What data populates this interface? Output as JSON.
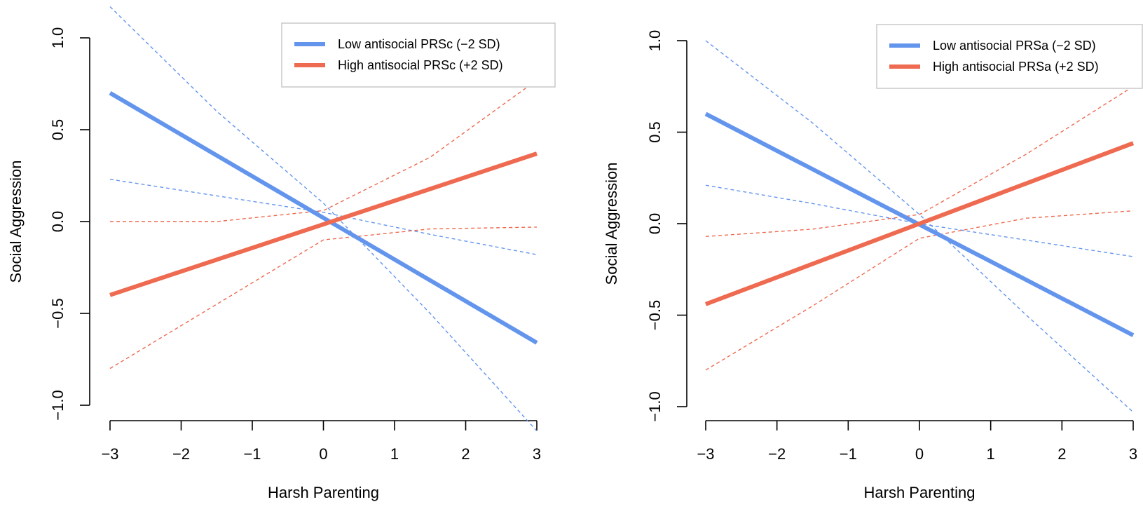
{
  "chart_data": [
    {
      "type": "line",
      "xlabel": "Harsh Parenting",
      "ylabel": "Social Aggression",
      "xlim": [
        -3,
        3
      ],
      "ylim": [
        -1,
        1
      ],
      "x_ticks": [
        "−3",
        "−2",
        "−1",
        "0",
        "1",
        "2",
        "3"
      ],
      "y_ticks": [
        "−1.0",
        "−0.5",
        "0.0",
        "0.5",
        "1.0"
      ],
      "legend_position": "top-right",
      "series": [
        {
          "name": "Low antisocial PRSc (−2 SD)",
          "color": "#6495ed",
          "x": [
            -3,
            3
          ],
          "y": [
            0.7,
            -0.66
          ],
          "ci_upper": {
            "x": [
              -3,
              -1.5,
              0,
              1.5,
              3
            ],
            "y": [
              0.23,
              0.14,
              0.05,
              -0.07,
              -0.18
            ]
          },
          "ci_lower": {
            "x": [
              -3,
              -1.5,
              0,
              1.5,
              3
            ],
            "y": [
              1.17,
              0.6,
              0.1,
              -0.5,
              -1.14
            ]
          }
        },
        {
          "name": "High antisocial PRSc (+2 SD)",
          "color": "#ee6a50",
          "x": [
            -3,
            3
          ],
          "y": [
            -0.4,
            0.37
          ],
          "ci_upper": {
            "x": [
              -3,
              -1.5,
              0,
              1.5,
              3
            ],
            "y": [
              0.0,
              0.0,
              0.06,
              0.35,
              0.77
            ]
          },
          "ci_lower": {
            "x": [
              -3,
              -1.5,
              0,
              1.5,
              3
            ],
            "y": [
              -0.8,
              -0.45,
              -0.1,
              -0.04,
              -0.03
            ]
          }
        }
      ]
    },
    {
      "type": "line",
      "xlabel": "Harsh Parenting",
      "ylabel": "Social Aggression",
      "xlim": [
        -3,
        3
      ],
      "ylim": [
        -1,
        1
      ],
      "x_ticks": [
        "−3",
        "−2",
        "−1",
        "0",
        "1",
        "2",
        "3"
      ],
      "y_ticks": [
        "−1.0",
        "−0.5",
        "0.0",
        "0.5",
        "1.0"
      ],
      "legend_position": "top-right",
      "series": [
        {
          "name": "Low antisocial PRSa (−2 SD)",
          "color": "#6495ed",
          "x": [
            -3,
            3
          ],
          "y": [
            0.6,
            -0.61
          ],
          "ci_upper": {
            "x": [
              -3,
              -1.5,
              0,
              1.5,
              3
            ],
            "y": [
              0.21,
              0.11,
              0.0,
              -0.09,
              -0.18
            ]
          },
          "ci_lower": {
            "x": [
              -3,
              -1.5,
              0,
              1.5,
              3
            ],
            "y": [
              1.0,
              0.55,
              0.05,
              -0.5,
              -1.03
            ]
          }
        },
        {
          "name": "High antisocial PRSa (+2 SD)",
          "color": "#ee6a50",
          "x": [
            -3,
            3
          ],
          "y": [
            -0.44,
            0.44
          ],
          "ci_upper": {
            "x": [
              -3,
              -1.5,
              0,
              1.5,
              3
            ],
            "y": [
              -0.07,
              -0.03,
              0.05,
              0.38,
              0.75
            ]
          },
          "ci_lower": {
            "x": [
              -3,
              -1.5,
              0,
              1.5,
              3
            ],
            "y": [
              -0.8,
              -0.45,
              -0.08,
              0.03,
              0.07
            ]
          }
        }
      ]
    }
  ]
}
